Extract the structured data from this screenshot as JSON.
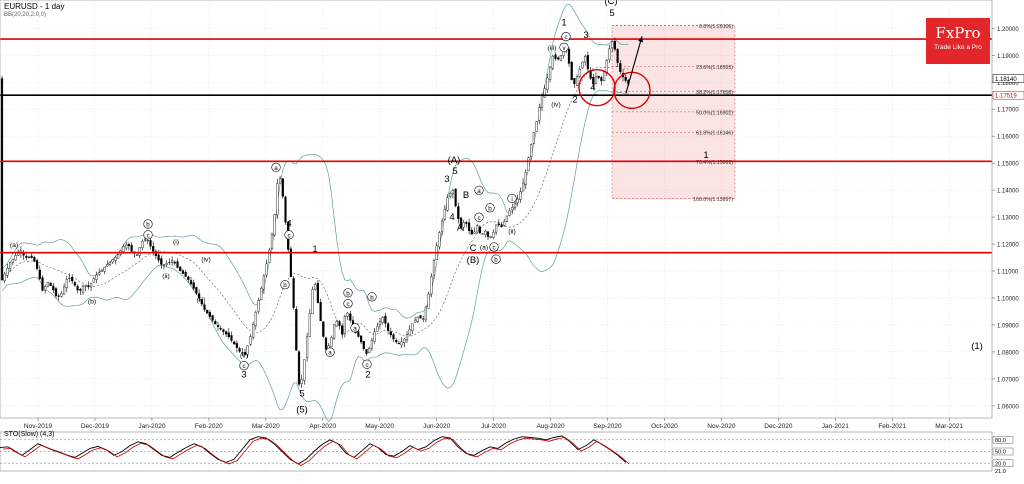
{
  "chart_title": "EURUSD - 1 day",
  "indicator_label": "BB(20,20,2.0,0)",
  "stochastic_label": "STO(Slow) (4,3)",
  "brand": {
    "name": "FxPro",
    "tagline": "Trade Like a Pro",
    "color": "#e2262a"
  },
  "chart_data": {
    "type": "candlestick",
    "symbol": "EURUSD",
    "timeframe": "1 day",
    "x_ticks": [
      "Nov-2019",
      "Dec-2019",
      "Jan-2020",
      "Feb-2020",
      "Mar-2020",
      "Apr-2020",
      "May-2020",
      "Jun-2020",
      "Jul-2020",
      "Aug-2020",
      "Sep-2020",
      "Oct-2020",
      "Nov-2020",
      "Dec-2020",
      "Jan-2021",
      "Feb-2021",
      "Mar-2021"
    ],
    "y_ticks": [
      "1.20000",
      "1.19000",
      "1.18000",
      "1.17000",
      "1.16000",
      "1.15000",
      "1.14000",
      "1.13000",
      "1.12000",
      "1.11000",
      "1.10000",
      "1.09000",
      "1.08000",
      "1.07000",
      "1.06000"
    ],
    "ylim": [
      1.0555,
      1.2105
    ],
    "price_path": [
      [
        0,
        1.105
      ],
      [
        6,
        1.11
      ],
      [
        10,
        1.113
      ],
      [
        16,
        1.116
      ],
      [
        20,
        1.118
      ],
      [
        25,
        1.115
      ],
      [
        33,
        1.115
      ],
      [
        38,
        1.11
      ],
      [
        43,
        1.102
      ],
      [
        47,
        1.106
      ],
      [
        52,
        1.104
      ],
      [
        57,
        1.1
      ],
      [
        62,
        1.102
      ],
      [
        68,
        1.108
      ],
      [
        73,
        1.106
      ],
      [
        79,
        1.102
      ],
      [
        84,
        1.105
      ],
      [
        89,
        1.104
      ],
      [
        95,
        1.108
      ],
      [
        101,
        1.11
      ],
      [
        106,
        1.112
      ],
      [
        112,
        1.114
      ],
      [
        118,
        1.116
      ],
      [
        123,
        1.119
      ],
      [
        128,
        1.12
      ],
      [
        132,
        1.117
      ],
      [
        137,
        1.116
      ],
      [
        142,
        1.121
      ],
      [
        147,
        1.122
      ],
      [
        152,
        1.118
      ],
      [
        157,
        1.115
      ],
      [
        162,
        1.112
      ],
      [
        168,
        1.113
      ],
      [
        173,
        1.114
      ],
      [
        178,
        1.111
      ],
      [
        183,
        1.109
      ],
      [
        188,
        1.107
      ],
      [
        193,
        1.104
      ],
      [
        199,
        1.1
      ],
      [
        204,
        1.096
      ],
      [
        210,
        1.093
      ],
      [
        216,
        1.09
      ],
      [
        222,
        1.088
      ],
      [
        228,
        1.086
      ],
      [
        234,
        1.083
      ],
      [
        240,
        1.08
      ],
      [
        245,
        1.079
      ],
      [
        250,
        1.085
      ],
      [
        256,
        1.095
      ],
      [
        262,
        1.105
      ],
      [
        268,
        1.115
      ],
      [
        274,
        1.128
      ],
      [
        278,
        1.145
      ],
      [
        281,
        1.144
      ],
      [
        285,
        1.13
      ],
      [
        289,
        1.115
      ],
      [
        293,
        1.1
      ],
      [
        296,
        1.082
      ],
      [
        299,
        1.068
      ],
      [
        302,
        1.07
      ],
      [
        306,
        1.082
      ],
      [
        310,
        1.095
      ],
      [
        314,
        1.108
      ],
      [
        318,
        1.098
      ],
      [
        322,
        1.088
      ],
      [
        326,
        1.081
      ],
      [
        330,
        1.083
      ],
      [
        334,
        1.09
      ],
      [
        338,
        1.092
      ],
      [
        342,
        1.086
      ],
      [
        346,
        1.096
      ],
      [
        350,
        1.092
      ],
      [
        354,
        1.088
      ],
      [
        358,
        1.086
      ],
      [
        362,
        1.083
      ],
      [
        366,
        1.079
      ],
      [
        370,
        1.082
      ],
      [
        374,
        1.087
      ],
      [
        378,
        1.09
      ],
      [
        383,
        1.093
      ],
      [
        388,
        1.088
      ],
      [
        393,
        1.085
      ],
      [
        398,
        1.083
      ],
      [
        403,
        1.084
      ],
      [
        408,
        1.087
      ],
      [
        413,
        1.091
      ],
      [
        418,
        1.093
      ],
      [
        423,
        1.092
      ],
      [
        428,
        1.1
      ],
      [
        433,
        1.112
      ],
      [
        438,
        1.122
      ],
      [
        443,
        1.13
      ],
      [
        448,
        1.138
      ],
      [
        453,
        1.14
      ],
      [
        457,
        1.131
      ],
      [
        461,
        1.126
      ],
      [
        465,
        1.129
      ],
      [
        469,
        1.125
      ],
      [
        473,
        1.123
      ],
      [
        477,
        1.127
      ],
      [
        481,
        1.123
      ],
      [
        485,
        1.125
      ],
      [
        489,
        1.122
      ],
      [
        493,
        1.124
      ],
      [
        497,
        1.128
      ],
      [
        501,
        1.126
      ],
      [
        505,
        1.129
      ],
      [
        509,
        1.132
      ],
      [
        513,
        1.134
      ],
      [
        517,
        1.136
      ],
      [
        521,
        1.14
      ],
      [
        525,
        1.145
      ],
      [
        529,
        1.153
      ],
      [
        533,
        1.16
      ],
      [
        537,
        1.166
      ],
      [
        541,
        1.174
      ],
      [
        545,
        1.178
      ],
      [
        549,
        1.184
      ],
      [
        553,
        1.19
      ],
      [
        557,
        1.188
      ],
      [
        561,
        1.19
      ],
      [
        565,
        1.195
      ],
      [
        569,
        1.187
      ],
      [
        573,
        1.178
      ],
      [
        577,
        1.182
      ],
      [
        581,
        1.186
      ],
      [
        585,
        1.19
      ],
      [
        589,
        1.183
      ],
      [
        593,
        1.179
      ],
      [
        597,
        1.183
      ],
      [
        601,
        1.18
      ],
      [
        605,
        1.185
      ],
      [
        609,
        1.192
      ],
      [
        613,
        1.196
      ],
      [
        617,
        1.188
      ],
      [
        621,
        1.183
      ],
      [
        625,
        1.181
      ],
      [
        629,
        1.179
      ],
      [
        631,
        1.1814
      ]
    ],
    "current_price": "1.18140",
    "price_labels": {
      "current": "1.18140",
      "horizontal": "1.17519"
    },
    "horizontal_lines": [
      {
        "price": 1.196,
        "color": "#e00000"
      },
      {
        "price": 1.1752,
        "color": "#000000"
      },
      {
        "price": 1.1507,
        "color": "#e00000"
      },
      {
        "price": 1.1168,
        "color": "#e00000"
      }
    ],
    "fibonacci": {
      "levels": [
        {
          "label": "0.0%(1.20106)",
          "price": 1.20106
        },
        {
          "label": "23.6%(1.18593)",
          "price": 1.18593
        },
        {
          "label": "38.2%(1.17658)",
          "price": 1.17658
        },
        {
          "label": "50.0%(1.16902)",
          "price": 1.16902
        },
        {
          "label": "61.8%(1.16146)",
          "price": 1.16146
        },
        {
          "label": "76.4%(1.15069)",
          "price": 1.15069
        },
        {
          "label": "100.0%(1.13697)",
          "price": 1.13697
        }
      ]
    },
    "wave_labels": [
      {
        "text": "(a)",
        "circled": false,
        "x": 14,
        "p": 1.119
      },
      {
        "text": "b",
        "circled": true,
        "x": 148,
        "p": 1.1265
      },
      {
        "text": "c",
        "circled": true,
        "x": 148,
        "p": 1.1225
      },
      {
        "text": "(i)",
        "circled": false,
        "x": 176,
        "p": 1.12
      },
      {
        "text": "(ii)",
        "circled": false,
        "x": 166,
        "p": 1.1075
      },
      {
        "text": "(iv)",
        "circled": false,
        "x": 206,
        "p": 1.1135
      },
      {
        "text": "(iii)",
        "circled": false,
        "x": 201,
        "p": 1.0985
      },
      {
        "text": "(b)",
        "circled": false,
        "x": 92,
        "p": 1.098
      },
      {
        "text": "(v)",
        "circled": false,
        "x": 244,
        "p": 1.078
      },
      {
        "text": "c",
        "circled": true,
        "x": 244,
        "p": 1.074
      },
      {
        "text": "3",
        "circled": false,
        "x": 244,
        "p": 1.0705
      },
      {
        "text": "a",
        "circled": true,
        "x": 276,
        "p": 1.1475
      },
      {
        "text": "4",
        "circled": false,
        "x": 289,
        "p": 1.1265
      },
      {
        "text": "c",
        "circled": true,
        "x": 289,
        "p": 1.1225
      },
      {
        "text": "b",
        "circled": true,
        "x": 285,
        "p": 1.104
      },
      {
        "text": "5",
        "circled": false,
        "x": 302,
        "p": 1.0635
      },
      {
        "text": "(5)",
        "circled": false,
        "x": 302,
        "p": 1.0575
      },
      {
        "text": "1",
        "circled": false,
        "x": 315,
        "p": 1.117
      },
      {
        "text": "a",
        "circled": true,
        "x": 330,
        "p": 1.079
      },
      {
        "text": "b",
        "circled": true,
        "x": 348,
        "p": 1.101
      },
      {
        "text": "c",
        "circled": true,
        "x": 348,
        "p": 1.097
      },
      {
        "text": "a",
        "circled": true,
        "x": 355,
        "p": 1.088
      },
      {
        "text": "b",
        "circled": true,
        "x": 372,
        "p": 1.0995
      },
      {
        "text": "c",
        "circled": true,
        "x": 367,
        "p": 1.0745
      },
      {
        "text": "2",
        "circled": false,
        "x": 368,
        "p": 1.0705
      },
      {
        "text": "(A)",
        "circled": false,
        "x": 454,
        "p": 1.15
      },
      {
        "text": "3",
        "circled": false,
        "x": 447,
        "p": 1.143
      },
      {
        "text": "5",
        "circled": false,
        "x": 455,
        "p": 1.146
      },
      {
        "text": "B",
        "circled": false,
        "x": 466,
        "p": 1.137
      },
      {
        "text": "a",
        "circled": true,
        "x": 479,
        "p": 1.139
      },
      {
        "text": "b",
        "circled": true,
        "x": 490,
        "p": 1.1325
      },
      {
        "text": "c",
        "circled": true,
        "x": 479,
        "p": 1.129
      },
      {
        "text": "4",
        "circled": false,
        "x": 452,
        "p": 1.129
      },
      {
        "text": "A",
        "circled": false,
        "x": 460,
        "p": 1.125
      },
      {
        "text": "C",
        "circled": false,
        "x": 473,
        "p": 1.1175
      },
      {
        "text": "(B)",
        "circled": false,
        "x": 473,
        "p": 1.113
      },
      {
        "text": "(a)",
        "circled": false,
        "x": 484,
        "p": 1.118
      },
      {
        "text": "c",
        "circled": true,
        "x": 494,
        "p": 1.118
      },
      {
        "text": "b",
        "circled": true,
        "x": 496,
        "p": 1.1135
      },
      {
        "text": "(ii)",
        "circled": false,
        "x": 512,
        "p": 1.124
      },
      {
        "text": "i",
        "circled": true,
        "x": 512,
        "p": 1.136
      },
      {
        "text": "(iii)",
        "circled": false,
        "x": 552,
        "p": 1.192
      },
      {
        "text": "(iv)",
        "circled": false,
        "x": 556,
        "p": 1.171
      },
      {
        "text": "1",
        "circled": false,
        "x": 564,
        "p": 1.201
      },
      {
        "text": "c",
        "circled": true,
        "x": 566,
        "p": 1.196
      },
      {
        "text": "v",
        "circled": true,
        "x": 564,
        "p": 1.192
      },
      {
        "text": "3",
        "circled": false,
        "x": 586,
        "p": 1.1965
      },
      {
        "text": "2",
        "circled": false,
        "x": 575,
        "p": 1.1725
      },
      {
        "text": "4",
        "circled": false,
        "x": 593,
        "p": 1.177
      },
      {
        "text": "(C)",
        "circled": false,
        "x": 611,
        "p": 1.209
      },
      {
        "text": "5",
        "circled": false,
        "x": 612,
        "p": 1.2045
      },
      {
        "text": "1",
        "circled": false,
        "x": 706,
        "p": 1.152
      },
      {
        "text": "(1)",
        "circled": false,
        "x": 977,
        "p": 1.081
      }
    ],
    "stochastic": {
      "levels": [
        "80.0",
        "50.0",
        "20.0"
      ],
      "readout": "21.0",
      "values": [
        [
          0,
          60
        ],
        [
          8,
          62
        ],
        [
          15,
          50
        ],
        [
          22,
          40
        ],
        [
          30,
          55
        ],
        [
          38,
          70
        ],
        [
          45,
          62
        ],
        [
          52,
          55
        ],
        [
          60,
          48
        ],
        [
          68,
          40
        ],
        [
          75,
          35
        ],
        [
          82,
          45
        ],
        [
          90,
          58
        ],
        [
          98,
          63
        ],
        [
          106,
          55
        ],
        [
          114,
          40
        ],
        [
          122,
          50
        ],
        [
          130,
          65
        ],
        [
          138,
          75
        ],
        [
          146,
          70
        ],
        [
          154,
          55
        ],
        [
          162,
          40
        ],
        [
          170,
          35
        ],
        [
          178,
          48
        ],
        [
          186,
          60
        ],
        [
          194,
          70
        ],
        [
          202,
          62
        ],
        [
          210,
          45
        ],
        [
          218,
          30
        ],
        [
          226,
          22
        ],
        [
          234,
          30
        ],
        [
          242,
          55
        ],
        [
          250,
          80
        ],
        [
          258,
          88
        ],
        [
          266,
          85
        ],
        [
          274,
          70
        ],
        [
          282,
          50
        ],
        [
          290,
          30
        ],
        [
          298,
          18
        ],
        [
          306,
          30
        ],
        [
          314,
          50
        ],
        [
          322,
          68
        ],
        [
          330,
          80
        ],
        [
          338,
          70
        ],
        [
          346,
          45
        ],
        [
          354,
          35
        ],
        [
          362,
          52
        ],
        [
          370,
          70
        ],
        [
          378,
          60
        ],
        [
          386,
          42
        ],
        [
          394,
          38
        ],
        [
          402,
          50
        ],
        [
          410,
          65
        ],
        [
          418,
          55
        ],
        [
          426,
          62
        ],
        [
          434,
          78
        ],
        [
          442,
          88
        ],
        [
          450,
          85
        ],
        [
          458,
          62
        ],
        [
          466,
          45
        ],
        [
          474,
          40
        ],
        [
          482,
          52
        ],
        [
          490,
          62
        ],
        [
          498,
          58
        ],
        [
          506,
          72
        ],
        [
          514,
          82
        ],
        [
          522,
          88
        ],
        [
          530,
          86
        ],
        [
          538,
          84
        ],
        [
          546,
          80
        ],
        [
          554,
          86
        ],
        [
          562,
          90
        ],
        [
          570,
          75
        ],
        [
          578,
          55
        ],
        [
          586,
          65
        ],
        [
          594,
          80
        ],
        [
          602,
          68
        ],
        [
          610,
          55
        ],
        [
          618,
          40
        ],
        [
          626,
          22
        ]
      ]
    },
    "arrow_target": {
      "x": 642,
      "p": 1.197
    },
    "highlight_circles": [
      {
        "x": 597,
        "p": 1.178
      },
      {
        "x": 632,
        "p": 1.177
      }
    ]
  }
}
